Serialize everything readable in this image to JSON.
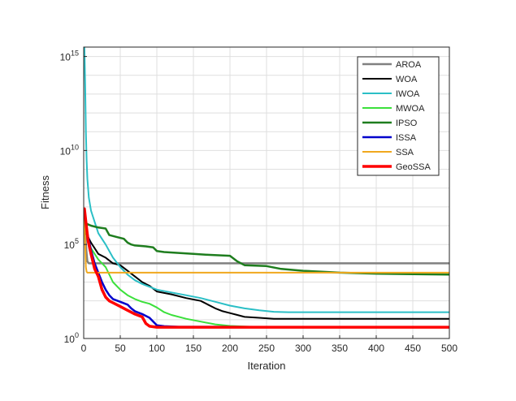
{
  "chart_data": {
    "type": "line",
    "title": "",
    "xlabel": "Iteration",
    "ylabel": "Fitness",
    "xlim": [
      0,
      500
    ],
    "ylim_log10": [
      0,
      15.5
    ],
    "y_scale": "log",
    "grid": true,
    "legend_position": "top-right",
    "x_ticks": [
      0,
      50,
      100,
      150,
      200,
      250,
      300,
      350,
      400,
      450,
      500
    ],
    "x_tick_labels": [
      "0",
      "50",
      "100",
      "150",
      "200",
      "250",
      "300",
      "350",
      "400",
      "450",
      "500"
    ],
    "y_ticks_log10": [
      0,
      5,
      10,
      15
    ],
    "y_tick_labels": [
      "10^0",
      "10^5",
      "10^10",
      "10^15"
    ],
    "series": [
      {
        "name": "AROA",
        "color": "#808080",
        "width": 2.5,
        "points": [
          [
            1,
            6.7
          ],
          [
            2,
            5.8
          ],
          [
            3,
            5.0
          ],
          [
            4,
            4.5
          ],
          [
            5,
            4.1
          ],
          [
            7,
            4.0
          ],
          [
            500,
            4.0
          ]
        ]
      },
      {
        "name": "WOA",
        "color": "#000000",
        "width": 2,
        "points": [
          [
            1,
            6.0
          ],
          [
            3,
            5.6
          ],
          [
            6,
            5.4
          ],
          [
            10,
            5.1
          ],
          [
            15,
            4.8
          ],
          [
            20,
            4.5
          ],
          [
            30,
            4.3
          ],
          [
            40,
            4.0
          ],
          [
            50,
            3.9
          ],
          [
            60,
            3.6
          ],
          [
            70,
            3.3
          ],
          [
            80,
            3.0
          ],
          [
            90,
            2.8
          ],
          [
            100,
            2.5
          ],
          [
            120,
            2.35
          ],
          [
            140,
            2.15
          ],
          [
            160,
            2.0
          ],
          [
            170,
            1.8
          ],
          [
            180,
            1.6
          ],
          [
            190,
            1.45
          ],
          [
            200,
            1.35
          ],
          [
            210,
            1.25
          ],
          [
            220,
            1.15
          ],
          [
            240,
            1.1
          ],
          [
            260,
            1.05
          ],
          [
            500,
            1.05
          ]
        ]
      },
      {
        "name": "IWOA",
        "color": "#2BBFC6",
        "width": 2,
        "points": [
          [
            1,
            15.5
          ],
          [
            2,
            13.5
          ],
          [
            3,
            11.0
          ],
          [
            4,
            9.5
          ],
          [
            5,
            8.5
          ],
          [
            7,
            7.5
          ],
          [
            10,
            6.8
          ],
          [
            15,
            6.2
          ],
          [
            20,
            5.6
          ],
          [
            30,
            5.0
          ],
          [
            40,
            4.3
          ],
          [
            50,
            3.8
          ],
          [
            60,
            3.4
          ],
          [
            70,
            3.1
          ],
          [
            80,
            2.9
          ],
          [
            90,
            2.75
          ],
          [
            100,
            2.6
          ],
          [
            120,
            2.45
          ],
          [
            140,
            2.3
          ],
          [
            160,
            2.15
          ],
          [
            180,
            1.95
          ],
          [
            200,
            1.75
          ],
          [
            220,
            1.6
          ],
          [
            240,
            1.5
          ],
          [
            260,
            1.42
          ],
          [
            280,
            1.4
          ],
          [
            500,
            1.4
          ]
        ]
      },
      {
        "name": "MWOA",
        "color": "#3BE03B",
        "width": 2,
        "points": [
          [
            1,
            6.5
          ],
          [
            3,
            6.0
          ],
          [
            6,
            5.3
          ],
          [
            10,
            4.8
          ],
          [
            15,
            4.5
          ],
          [
            20,
            4.2
          ],
          [
            30,
            3.8
          ],
          [
            40,
            3.0
          ],
          [
            50,
            2.6
          ],
          [
            60,
            2.3
          ],
          [
            70,
            2.1
          ],
          [
            80,
            1.95
          ],
          [
            90,
            1.85
          ],
          [
            100,
            1.65
          ],
          [
            110,
            1.4
          ],
          [
            120,
            1.25
          ],
          [
            140,
            1.05
          ],
          [
            160,
            0.9
          ],
          [
            180,
            0.75
          ],
          [
            200,
            0.67
          ],
          [
            230,
            0.62
          ],
          [
            260,
            0.6
          ],
          [
            500,
            0.6
          ]
        ]
      },
      {
        "name": "IPSO",
        "color": "#1E7D1E",
        "width": 2.5,
        "points": [
          [
            1,
            6.5
          ],
          [
            2,
            6.2
          ],
          [
            4,
            6.1
          ],
          [
            10,
            6.0
          ],
          [
            20,
            5.9
          ],
          [
            30,
            5.85
          ],
          [
            35,
            5.5
          ],
          [
            45,
            5.4
          ],
          [
            55,
            5.3
          ],
          [
            60,
            5.1
          ],
          [
            65,
            5.0
          ],
          [
            70,
            4.95
          ],
          [
            85,
            4.9
          ],
          [
            95,
            4.85
          ],
          [
            100,
            4.65
          ],
          [
            110,
            4.6
          ],
          [
            130,
            4.55
          ],
          [
            150,
            4.5
          ],
          [
            170,
            4.45
          ],
          [
            200,
            4.4
          ],
          [
            210,
            4.1
          ],
          [
            220,
            3.9
          ],
          [
            250,
            3.85
          ],
          [
            270,
            3.7
          ],
          [
            300,
            3.6
          ],
          [
            350,
            3.5
          ],
          [
            400,
            3.45
          ],
          [
            450,
            3.42
          ],
          [
            500,
            3.4
          ]
        ]
      },
      {
        "name": "ISSA",
        "color": "#0000CC",
        "width": 2.5,
        "points": [
          [
            1,
            6.8
          ],
          [
            3,
            6.0
          ],
          [
            6,
            5.4
          ],
          [
            10,
            4.7
          ],
          [
            15,
            4.0
          ],
          [
            20,
            3.5
          ],
          [
            25,
            3.0
          ],
          [
            30,
            2.6
          ],
          [
            35,
            2.3
          ],
          [
            40,
            2.1
          ],
          [
            50,
            1.95
          ],
          [
            60,
            1.8
          ],
          [
            65,
            1.6
          ],
          [
            70,
            1.45
          ],
          [
            80,
            1.3
          ],
          [
            90,
            1.1
          ],
          [
            100,
            0.7
          ],
          [
            110,
            0.65
          ],
          [
            130,
            0.62
          ],
          [
            500,
            0.6
          ]
        ]
      },
      {
        "name": "SSA",
        "color": "#F0A81E",
        "width": 2,
        "points": [
          [
            1,
            6.4
          ],
          [
            2,
            5.0
          ],
          [
            3,
            3.8
          ],
          [
            4,
            3.55
          ],
          [
            5,
            3.5
          ],
          [
            500,
            3.5
          ]
        ]
      },
      {
        "name": "GeoSSA",
        "color": "#FF0000",
        "width": 3.5,
        "points": [
          [
            1,
            6.9
          ],
          [
            3,
            6.2
          ],
          [
            6,
            5.2
          ],
          [
            10,
            4.5
          ],
          [
            15,
            3.7
          ],
          [
            20,
            3.3
          ],
          [
            25,
            2.6
          ],
          [
            30,
            2.2
          ],
          [
            35,
            2.0
          ],
          [
            40,
            1.9
          ],
          [
            50,
            1.7
          ],
          [
            60,
            1.5
          ],
          [
            70,
            1.3
          ],
          [
            80,
            1.15
          ],
          [
            85,
            0.8
          ],
          [
            90,
            0.65
          ],
          [
            100,
            0.6
          ],
          [
            500,
            0.6
          ]
        ]
      }
    ]
  }
}
